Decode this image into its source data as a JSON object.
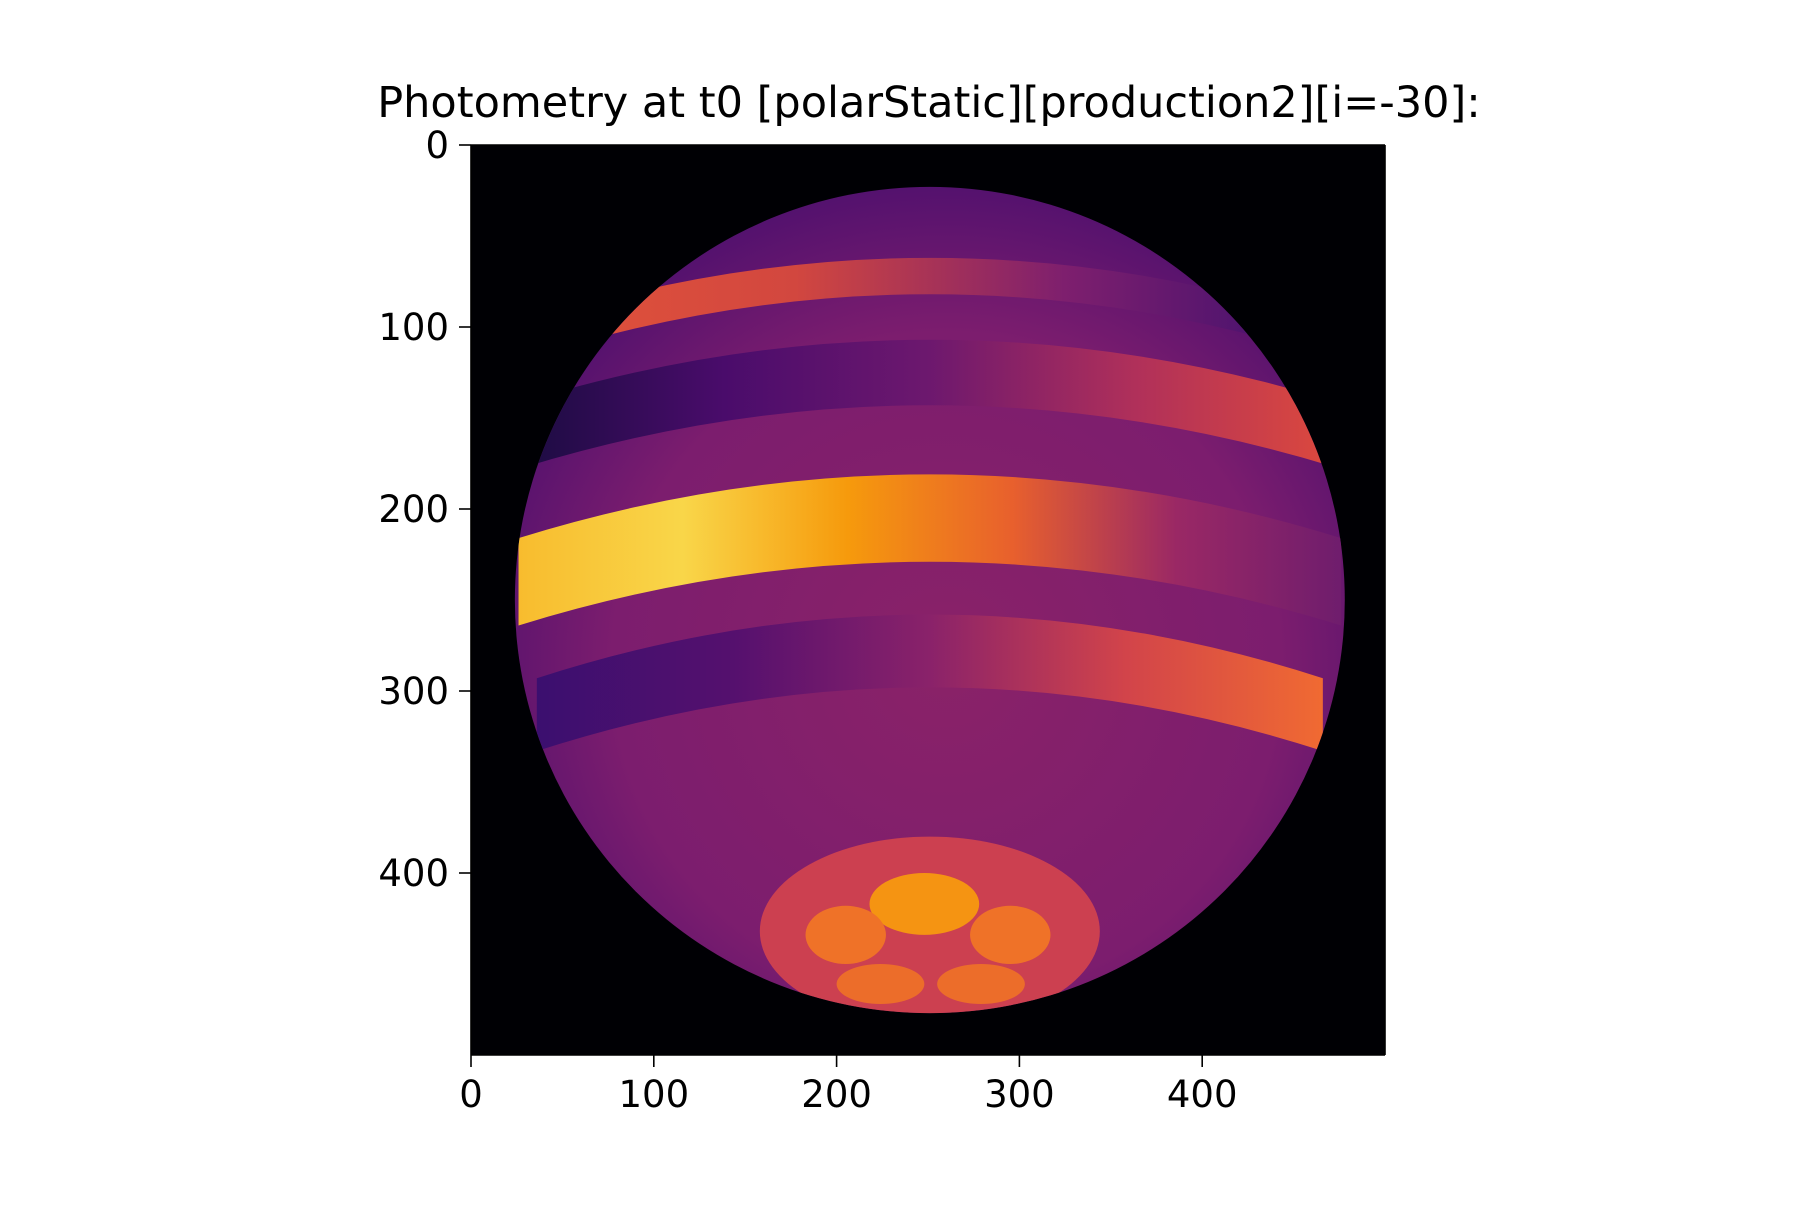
{
  "chart_data": {
    "type": "heatmap",
    "title": "Photometry at t0 [polarStatic][production2][i=-30]:",
    "xlabel": "",
    "ylabel": "",
    "xlim": [
      0,
      500
    ],
    "ylim": [
      500,
      0
    ],
    "x_ticks": [
      0,
      100,
      200,
      300,
      400
    ],
    "y_ticks": [
      0,
      100,
      200,
      300,
      400
    ],
    "colormap": "inferno",
    "background_color": "#000004",
    "grid": false,
    "image_content": "rendered stellar disk with latitudinal brightness bands and a bright polar spot pattern",
    "disk": {
      "center": [
        251,
        250
      ],
      "radius": 227
    },
    "bands": [
      {
        "name": "upper-narrow",
        "y_center": 72,
        "half_width": 10,
        "dx": 220,
        "colors": [
          "#e2533a",
          "#d2473f",
          "#7e1f6e",
          "#3b0f6f"
        ]
      },
      {
        "name": "upper-dark",
        "y_center": 125,
        "half_width": 18,
        "dx": 225,
        "colors": [
          "#1b0c41",
          "#4a0c6b",
          "#6d186e",
          "#b0305a",
          "#de4a3c"
        ]
      },
      {
        "name": "bright",
        "y_center": 205,
        "half_width": 24,
        "dx": 225,
        "colors": [
          "#f8bc2e",
          "#f9d649",
          "#f69a0c",
          "#e8602d",
          "#9a2865",
          "#6f1d6d"
        ]
      },
      {
        "name": "lower-dark",
        "y_center": 278,
        "half_width": 20,
        "dx": 215,
        "colors": [
          "#3b0f6f",
          "#55106e",
          "#8a226a",
          "#d2444a",
          "#f06a32"
        ]
      }
    ],
    "polar_cap": {
      "center": [
        251,
        432
      ],
      "rx": 93,
      "ry": 52,
      "color": "#cc4050",
      "spots": [
        {
          "center": [
            248,
            417
          ],
          "rx": 30,
          "ry": 17,
          "color": "#f59412"
        },
        {
          "center": [
            205,
            434
          ],
          "rx": 22,
          "ry": 16,
          "color": "#ef7228"
        },
        {
          "center": [
            295,
            434
          ],
          "rx": 22,
          "ry": 16,
          "color": "#ef7228"
        },
        {
          "center": [
            224,
            461
          ],
          "rx": 24,
          "ry": 11,
          "color": "#ec6d2a"
        },
        {
          "center": [
            279,
            461
          ],
          "rx": 24,
          "ry": 11,
          "color": "#ec6d2a"
        }
      ]
    }
  }
}
